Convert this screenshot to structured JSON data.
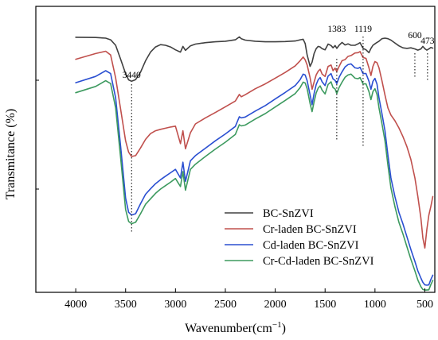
{
  "chart_data": {
    "type": "line",
    "title": "",
    "xlabel": "Wavenumber(cm",
    "xlabel_superscript": "−1",
    "xlabel_suffix": ")",
    "ylabel": "Transmitance (%)",
    "xlim": [
      4400,
      400
    ],
    "x_reversed": true,
    "ylim": [
      0,
      100
    ],
    "y_ticks_labeled": false,
    "x_ticks": [
      4000,
      3500,
      3000,
      2500,
      2000,
      1500,
      1000,
      500
    ],
    "x_tick_labels": [
      "4000",
      "3500",
      "3000",
      "2500",
      "2000",
      "1500",
      "1000",
      "500"
    ],
    "grid": false,
    "legend_position": "bottom-right",
    "annotations": [
      {
        "x": 3440,
        "label": "3440"
      },
      {
        "x": 1383,
        "label": "1383"
      },
      {
        "x": 1119,
        "label": "1119"
      },
      {
        "x": 600,
        "label": "600"
      },
      {
        "x": 473,
        "label": "473"
      }
    ],
    "series": [
      {
        "name": "BC-SnZVI",
        "color": "#404040",
        "x": [
          4000,
          3800,
          3700,
          3650,
          3600,
          3550,
          3500,
          3470,
          3440,
          3400,
          3350,
          3300,
          3250,
          3200,
          3150,
          3100,
          3050,
          3000,
          2950,
          2925,
          2900,
          2850,
          2800,
          2700,
          2600,
          2500,
          2400,
          2360,
          2340,
          2300,
          2200,
          2100,
          2000,
          1900,
          1800,
          1750,
          1720,
          1700,
          1680,
          1650,
          1630,
          1610,
          1590,
          1570,
          1550,
          1530,
          1500,
          1470,
          1440,
          1420,
          1400,
          1383,
          1360,
          1330,
          1300,
          1270,
          1240,
          1200,
          1170,
          1150,
          1119,
          1090,
          1060,
          1040,
          1020,
          1000,
          980,
          960,
          930,
          900,
          870,
          840,
          800,
          760,
          720,
          680,
          640,
          600,
          570,
          540,
          520,
          500,
          480,
          460,
          440,
          420
        ],
        "y": [
          89.2,
          89.1,
          88.9,
          88.3,
          86.4,
          81.5,
          76.5,
          74.3,
          73.8,
          74.4,
          77.0,
          81.0,
          84.0,
          85.8,
          86.6,
          86.4,
          85.8,
          84.8,
          84.0,
          86.0,
          84.6,
          86.2,
          86.8,
          87.3,
          87.6,
          87.8,
          88.3,
          89.3,
          88.7,
          88.2,
          87.8,
          87.6,
          87.6,
          87.7,
          87.9,
          88.3,
          88.5,
          87.0,
          83.0,
          79.0,
          80.5,
          83.5,
          85.2,
          86.0,
          85.8,
          85.2,
          84.8,
          86.8,
          86.3,
          85.5,
          86.3,
          85.3,
          86.4,
          87.4,
          86.5,
          86.9,
          86.4,
          86.4,
          86.9,
          87.3,
          85.3,
          84.8,
          83.8,
          85.3,
          86.4,
          86.9,
          87.4,
          87.8,
          88.7,
          88.9,
          88.7,
          88.2,
          87.2,
          86.2,
          85.5,
          85.3,
          85.5,
          85.1,
          84.7,
          85.1,
          86.0,
          85.2,
          84.7,
          85.1,
          85.6,
          85.4
        ]
      },
      {
        "name": "Cr-laden BC-SnZVI",
        "color": "#c0504d",
        "x": [
          4000,
          3800,
          3700,
          3650,
          3600,
          3550,
          3500,
          3470,
          3440,
          3400,
          3350,
          3300,
          3250,
          3200,
          3150,
          3100,
          3050,
          3000,
          2950,
          2925,
          2900,
          2850,
          2800,
          2700,
          2600,
          2500,
          2400,
          2360,
          2340,
          2300,
          2200,
          2100,
          2000,
          1900,
          1800,
          1750,
          1720,
          1700,
          1680,
          1650,
          1630,
          1610,
          1590,
          1570,
          1550,
          1530,
          1500,
          1470,
          1440,
          1420,
          1400,
          1383,
          1360,
          1330,
          1300,
          1270,
          1240,
          1200,
          1170,
          1150,
          1119,
          1090,
          1060,
          1040,
          1020,
          1000,
          980,
          960,
          930,
          900,
          870,
          840,
          800,
          760,
          720,
          680,
          640,
          600,
          570,
          540,
          520,
          500,
          480,
          460,
          440,
          420
        ],
        "y": [
          81.5,
          83.5,
          84.3,
          83.0,
          75.0,
          64.0,
          53.0,
          49.0,
          47.5,
          47.8,
          50.5,
          53.5,
          55.5,
          56.5,
          57.0,
          57.4,
          57.8,
          58.1,
          52.0,
          56.5,
          50.2,
          55.8,
          58.9,
          61.0,
          62.9,
          64.9,
          66.9,
          69.2,
          68.4,
          69.1,
          71.2,
          72.9,
          74.9,
          76.9,
          79.2,
          81.0,
          82.3,
          81.3,
          79.5,
          75.0,
          71.0,
          73.5,
          76.0,
          77.3,
          78.0,
          76.3,
          75.5,
          79.0,
          79.5,
          77.5,
          78.4,
          77.2,
          79.0,
          81.0,
          81.4,
          82.5,
          82.8,
          83.7,
          83.8,
          84.2,
          82.1,
          81.8,
          78.5,
          75.8,
          79.0,
          80.7,
          80.3,
          78.5,
          74.0,
          69.0,
          64.5,
          62.0,
          60.0,
          57.5,
          54.5,
          51.0,
          46.5,
          40.0,
          33.5,
          26.0,
          19.0,
          15.5,
          22.0,
          27.0,
          30.0,
          33.5
        ]
      },
      {
        "name": "Cd-laden BC-SnZVI",
        "color": "#2a4fd1",
        "x": [
          4000,
          3800,
          3700,
          3650,
          3600,
          3550,
          3500,
          3470,
          3440,
          3400,
          3350,
          3300,
          3250,
          3200,
          3150,
          3100,
          3050,
          3000,
          2950,
          2925,
          2900,
          2850,
          2800,
          2700,
          2600,
          2500,
          2400,
          2360,
          2340,
          2300,
          2200,
          2100,
          2000,
          1900,
          1800,
          1750,
          1720,
          1700,
          1680,
          1650,
          1630,
          1610,
          1590,
          1570,
          1550,
          1530,
          1500,
          1470,
          1440,
          1420,
          1400,
          1383,
          1360,
          1330,
          1300,
          1270,
          1240,
          1200,
          1170,
          1150,
          1119,
          1090,
          1060,
          1040,
          1020,
          1000,
          980,
          960,
          930,
          900,
          870,
          840,
          800,
          760,
          720,
          680,
          640,
          600,
          570,
          540,
          520,
          500,
          480,
          460,
          440,
          420
        ],
        "y": [
          73.3,
          75.5,
          77.5,
          76.5,
          68.0,
          51.0,
          33.0,
          28.0,
          27.0,
          27.5,
          31.0,
          34.3,
          36.2,
          38.0,
          39.4,
          40.6,
          41.8,
          43.0,
          40.0,
          45.5,
          38.8,
          46.0,
          47.8,
          50.4,
          53.0,
          55.4,
          58.0,
          61.4,
          61.0,
          61.3,
          63.4,
          65.3,
          67.6,
          69.9,
          72.3,
          74.4,
          76.3,
          76.0,
          74.0,
          69.0,
          65.6,
          69.5,
          72.6,
          74.3,
          75.1,
          73.6,
          72.3,
          75.6,
          76.5,
          74.6,
          74.1,
          73.0,
          75.2,
          77.1,
          78.8,
          79.6,
          79.9,
          78.5,
          78.3,
          78.7,
          76.5,
          76.5,
          73.8,
          71.0,
          73.8,
          74.8,
          72.8,
          68.0,
          62.5,
          56.5,
          48.0,
          40.0,
          33.5,
          28.0,
          24.0,
          19.5,
          15.0,
          10.8,
          7.5,
          5.0,
          3.5,
          2.6,
          2.5,
          2.6,
          4.5,
          6.0
        ]
      },
      {
        "name": "Cr-Cd-laden BC-SnZVI",
        "color": "#3d9a5f",
        "x": [
          4000,
          3800,
          3700,
          3650,
          3600,
          3550,
          3500,
          3470,
          3440,
          3400,
          3350,
          3300,
          3250,
          3200,
          3150,
          3100,
          3050,
          3000,
          2950,
          2925,
          2900,
          2850,
          2800,
          2700,
          2600,
          2500,
          2400,
          2360,
          2340,
          2300,
          2200,
          2100,
          2000,
          1900,
          1800,
          1750,
          1720,
          1700,
          1680,
          1650,
          1630,
          1610,
          1590,
          1570,
          1550,
          1530,
          1500,
          1470,
          1440,
          1420,
          1400,
          1383,
          1360,
          1330,
          1300,
          1270,
          1240,
          1200,
          1170,
          1150,
          1119,
          1090,
          1060,
          1040,
          1020,
          1000,
          980,
          960,
          930,
          900,
          870,
          840,
          800,
          760,
          720,
          680,
          640,
          600,
          570,
          540,
          520,
          500,
          480,
          460,
          440,
          420
        ],
        "y": [
          69.8,
          72.0,
          74.0,
          73.0,
          64.5,
          47.0,
          29.0,
          24.8,
          24.0,
          24.5,
          27.5,
          30.8,
          32.7,
          34.6,
          36.1,
          37.3,
          38.5,
          39.8,
          37.0,
          42.2,
          35.7,
          43.0,
          44.8,
          47.5,
          50.1,
          52.5,
          55.2,
          58.6,
          58.2,
          58.5,
          60.6,
          62.5,
          64.8,
          67.1,
          69.5,
          71.6,
          73.5,
          73.2,
          71.2,
          66.0,
          63.2,
          66.6,
          69.7,
          71.4,
          72.2,
          70.7,
          69.4,
          72.7,
          73.6,
          71.6,
          71.1,
          69.5,
          71.6,
          73.5,
          75.2,
          76.0,
          76.3,
          74.9,
          74.7,
          75.1,
          72.9,
          72.9,
          70.2,
          67.4,
          70.2,
          71.2,
          69.2,
          64.5,
          59.0,
          53.0,
          44.5,
          36.5,
          30.0,
          24.5,
          20.5,
          16.0,
          11.6,
          7.5,
          4.3,
          2.0,
          1.0,
          0.8,
          0.8,
          0.9,
          2.7,
          4.2
        ]
      }
    ]
  }
}
